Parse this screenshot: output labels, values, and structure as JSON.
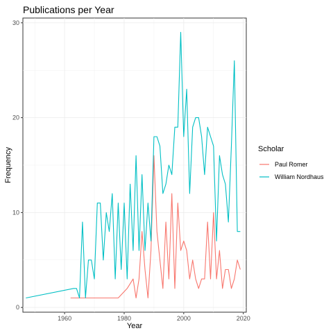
{
  "chart_data": {
    "type": "line",
    "title": "Publications per Year",
    "xlabel": "Year",
    "ylabel": "Frequency",
    "xlim": [
      1946,
      2021
    ],
    "ylim": [
      -0.5,
      30.5
    ],
    "xticks": [
      1960,
      1980,
      2000,
      2020
    ],
    "yticks": [
      0,
      10,
      20,
      30
    ],
    "grid": true,
    "legend": {
      "title": "Scholar",
      "position": "right"
    },
    "series": [
      {
        "name": "Paul Romer",
        "color": "#F8766D",
        "x": [
          1962,
          1964,
          1978,
          1981,
          1983,
          1984,
          1985,
          1986,
          1987,
          1988,
          1989,
          1990,
          1991,
          1992,
          1993,
          1994,
          1995,
          1996,
          1997,
          1998,
          1999,
          2000,
          2001,
          2002,
          2003,
          2004,
          2005,
          2006,
          2007,
          2008,
          2009,
          2010,
          2011,
          2012,
          2013,
          2014,
          2015,
          2016,
          2017,
          2018,
          2019
        ],
        "y": [
          1,
          1,
          1,
          2,
          3,
          1,
          3,
          8,
          4,
          1,
          6,
          16,
          8,
          5,
          2,
          9,
          3,
          12,
          2,
          11,
          6,
          7,
          6,
          3,
          5,
          3,
          2,
          3,
          3,
          9,
          3,
          10,
          3,
          6,
          2,
          4,
          4,
          2,
          3,
          5,
          4
        ]
      },
      {
        "name": "William Nordhaus",
        "color": "#00BFC4",
        "x": [
          1947,
          1963,
          1964,
          1965,
          1966,
          1967,
          1968,
          1969,
          1970,
          1971,
          1972,
          1973,
          1974,
          1975,
          1976,
          1977,
          1978,
          1979,
          1980,
          1981,
          1982,
          1983,
          1984,
          1985,
          1986,
          1987,
          1988,
          1989,
          1990,
          1991,
          1992,
          1993,
          1994,
          1995,
          1996,
          1997,
          1998,
          1999,
          2000,
          2001,
          2002,
          2003,
          2004,
          2005,
          2006,
          2007,
          2008,
          2009,
          2010,
          2011,
          2012,
          2013,
          2014,
          2015,
          2016,
          2017,
          2018,
          2019
        ],
        "y": [
          1,
          2,
          2,
          1,
          9,
          1,
          5,
          5,
          3,
          11,
          11,
          5,
          10,
          8,
          12,
          3,
          11,
          4,
          11,
          3,
          13,
          6,
          16,
          6,
          14,
          6,
          11,
          7,
          18,
          18,
          17,
          12,
          13,
          15,
          14,
          19,
          19,
          29,
          18,
          23,
          12,
          19,
          20,
          20,
          18,
          14,
          19,
          18,
          17,
          7,
          16,
          14,
          13,
          9,
          17,
          26,
          8,
          8
        ]
      }
    ]
  }
}
